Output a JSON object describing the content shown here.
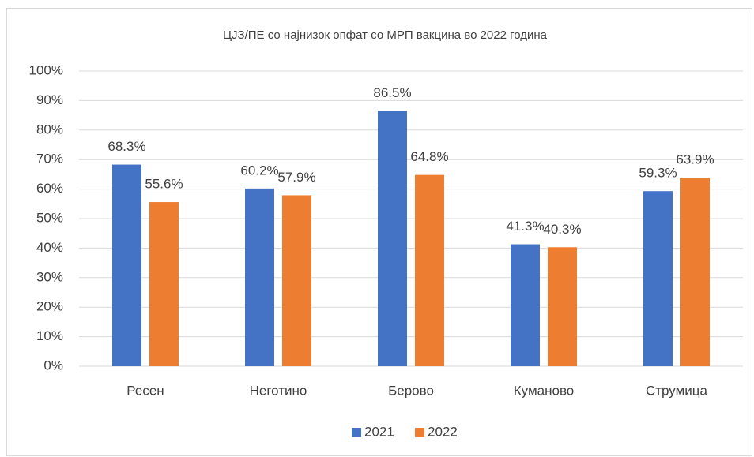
{
  "chart_data": {
    "type": "bar",
    "title": "ЦЈЗ/ПЕ со најнизок опфат со МРП вакцина во 2022 година",
    "categories": [
      "Ресен",
      "Неготино",
      "Берово",
      "Куманово",
      "Струмица"
    ],
    "series": [
      {
        "name": "2021",
        "color": "#4472c4",
        "values": [
          68.3,
          60.2,
          86.5,
          41.3,
          59.3
        ],
        "value_labels": [
          "68.3%",
          "60.2%",
          "86.5%",
          "41.3%",
          "59.3%"
        ]
      },
      {
        "name": "2022",
        "color": "#ed7d31",
        "values": [
          55.6,
          57.9,
          64.8,
          40.3,
          63.9
        ],
        "value_labels": [
          "55.6%",
          "57.9%",
          "64.8%",
          "40.3%",
          "63.9%"
        ]
      }
    ],
    "ylim": [
      0,
      100
    ],
    "yticks": [
      {
        "value": 0,
        "label": "0%"
      },
      {
        "value": 10,
        "label": "10%"
      },
      {
        "value": 20,
        "label": "20%"
      },
      {
        "value": 30,
        "label": "30%"
      },
      {
        "value": 40,
        "label": "40%"
      },
      {
        "value": 50,
        "label": "50%"
      },
      {
        "value": 60,
        "label": "60%"
      },
      {
        "value": 70,
        "label": "70%"
      },
      {
        "value": 80,
        "label": "80%"
      },
      {
        "value": 90,
        "label": "90%"
      },
      {
        "value": 100,
        "label": "100%"
      }
    ],
    "grid": true,
    "legend": "bottom"
  }
}
